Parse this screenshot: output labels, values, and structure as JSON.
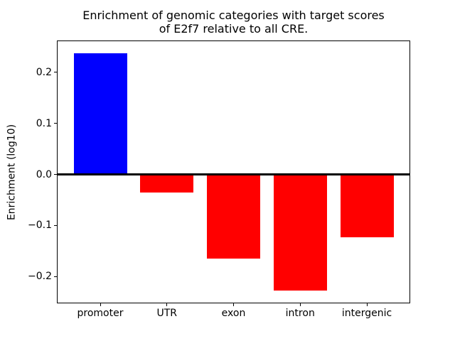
{
  "figure": {
    "background": "#ffffff",
    "axis_color": "#000000",
    "text_color": "#000000"
  },
  "chart_data": {
    "type": "bar",
    "title": "Enrichment of genomic categories with target scores\nof E2f7 relative to all CRE.",
    "xlabel": "",
    "ylabel": "Enrichment (log10)",
    "categories": [
      "promoter",
      "UTR",
      "exon",
      "intron",
      "intergenic"
    ],
    "values": [
      0.238,
      -0.036,
      -0.165,
      -0.228,
      -0.123
    ],
    "bar_colors": [
      "#0000ff",
      "#ff0000",
      "#ff0000",
      "#ff0000",
      "#ff0000"
    ],
    "positive_color": "#0000ff",
    "negative_color": "#ff0000",
    "bar_width": 0.8,
    "xlim": [
      -0.64,
      4.64
    ],
    "ylim": [
      -0.251,
      0.261
    ],
    "yticks": [
      0.2,
      0.1,
      0.0,
      -0.1,
      -0.2
    ],
    "ytick_labels": [
      "0.2",
      "0.1",
      "0.0",
      "−0.1",
      "−0.2"
    ],
    "grid": false,
    "legend": false,
    "zero_line": true
  }
}
